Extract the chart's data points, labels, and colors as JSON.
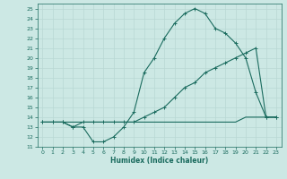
{
  "xlabel": "Humidex (Indice chaleur)",
  "ylabel": "",
  "background_color": "#cce8e4",
  "line_color": "#1a6b5e",
  "grid_color": "#b8d8d4",
  "xlim": [
    -0.5,
    23.5
  ],
  "ylim": [
    11,
    25.5
  ],
  "xticks": [
    0,
    1,
    2,
    3,
    4,
    5,
    6,
    7,
    8,
    9,
    10,
    11,
    12,
    13,
    14,
    15,
    16,
    17,
    18,
    19,
    20,
    21,
    22,
    23
  ],
  "yticks": [
    11,
    12,
    13,
    14,
    15,
    16,
    17,
    18,
    19,
    20,
    21,
    22,
    23,
    24,
    25
  ],
  "line1_x": [
    0,
    1,
    2,
    3,
    4,
    5,
    6,
    7,
    8,
    9,
    10,
    11,
    12,
    13,
    14,
    15,
    16,
    17,
    18,
    19,
    20,
    21,
    22,
    23
  ],
  "line1_y": [
    13.5,
    13.5,
    13.5,
    13.5,
    13.5,
    13.5,
    13.5,
    13.5,
    13.5,
    13.5,
    13.5,
    13.5,
    13.5,
    13.5,
    13.5,
    13.5,
    13.5,
    13.5,
    13.5,
    13.5,
    14.0,
    14.0,
    14.0,
    14.0
  ],
  "line2_x": [
    0,
    1,
    2,
    3,
    4,
    5,
    6,
    7,
    8,
    9,
    10,
    11,
    12,
    13,
    14,
    15,
    16,
    17,
    18,
    19,
    20,
    21,
    22,
    23
  ],
  "line2_y": [
    13.5,
    13.5,
    13.5,
    13.0,
    13.5,
    13.5,
    13.5,
    13.5,
    13.5,
    13.5,
    14.0,
    14.5,
    15.0,
    16.0,
    17.0,
    17.5,
    18.5,
    19.0,
    19.5,
    20.0,
    20.5,
    21.0,
    14.0,
    14.0
  ],
  "line3_x": [
    0,
    1,
    2,
    3,
    4,
    5,
    6,
    7,
    8,
    9,
    10,
    11,
    12,
    13,
    14,
    15,
    16,
    17,
    18,
    19,
    20,
    21,
    22,
    23
  ],
  "line3_y": [
    13.5,
    13.5,
    13.5,
    13.0,
    13.0,
    11.5,
    11.5,
    12.0,
    13.0,
    14.5,
    18.5,
    20.0,
    22.0,
    23.5,
    24.5,
    25.0,
    24.5,
    23.0,
    22.5,
    21.5,
    20.0,
    16.5,
    14.0,
    14.0
  ]
}
